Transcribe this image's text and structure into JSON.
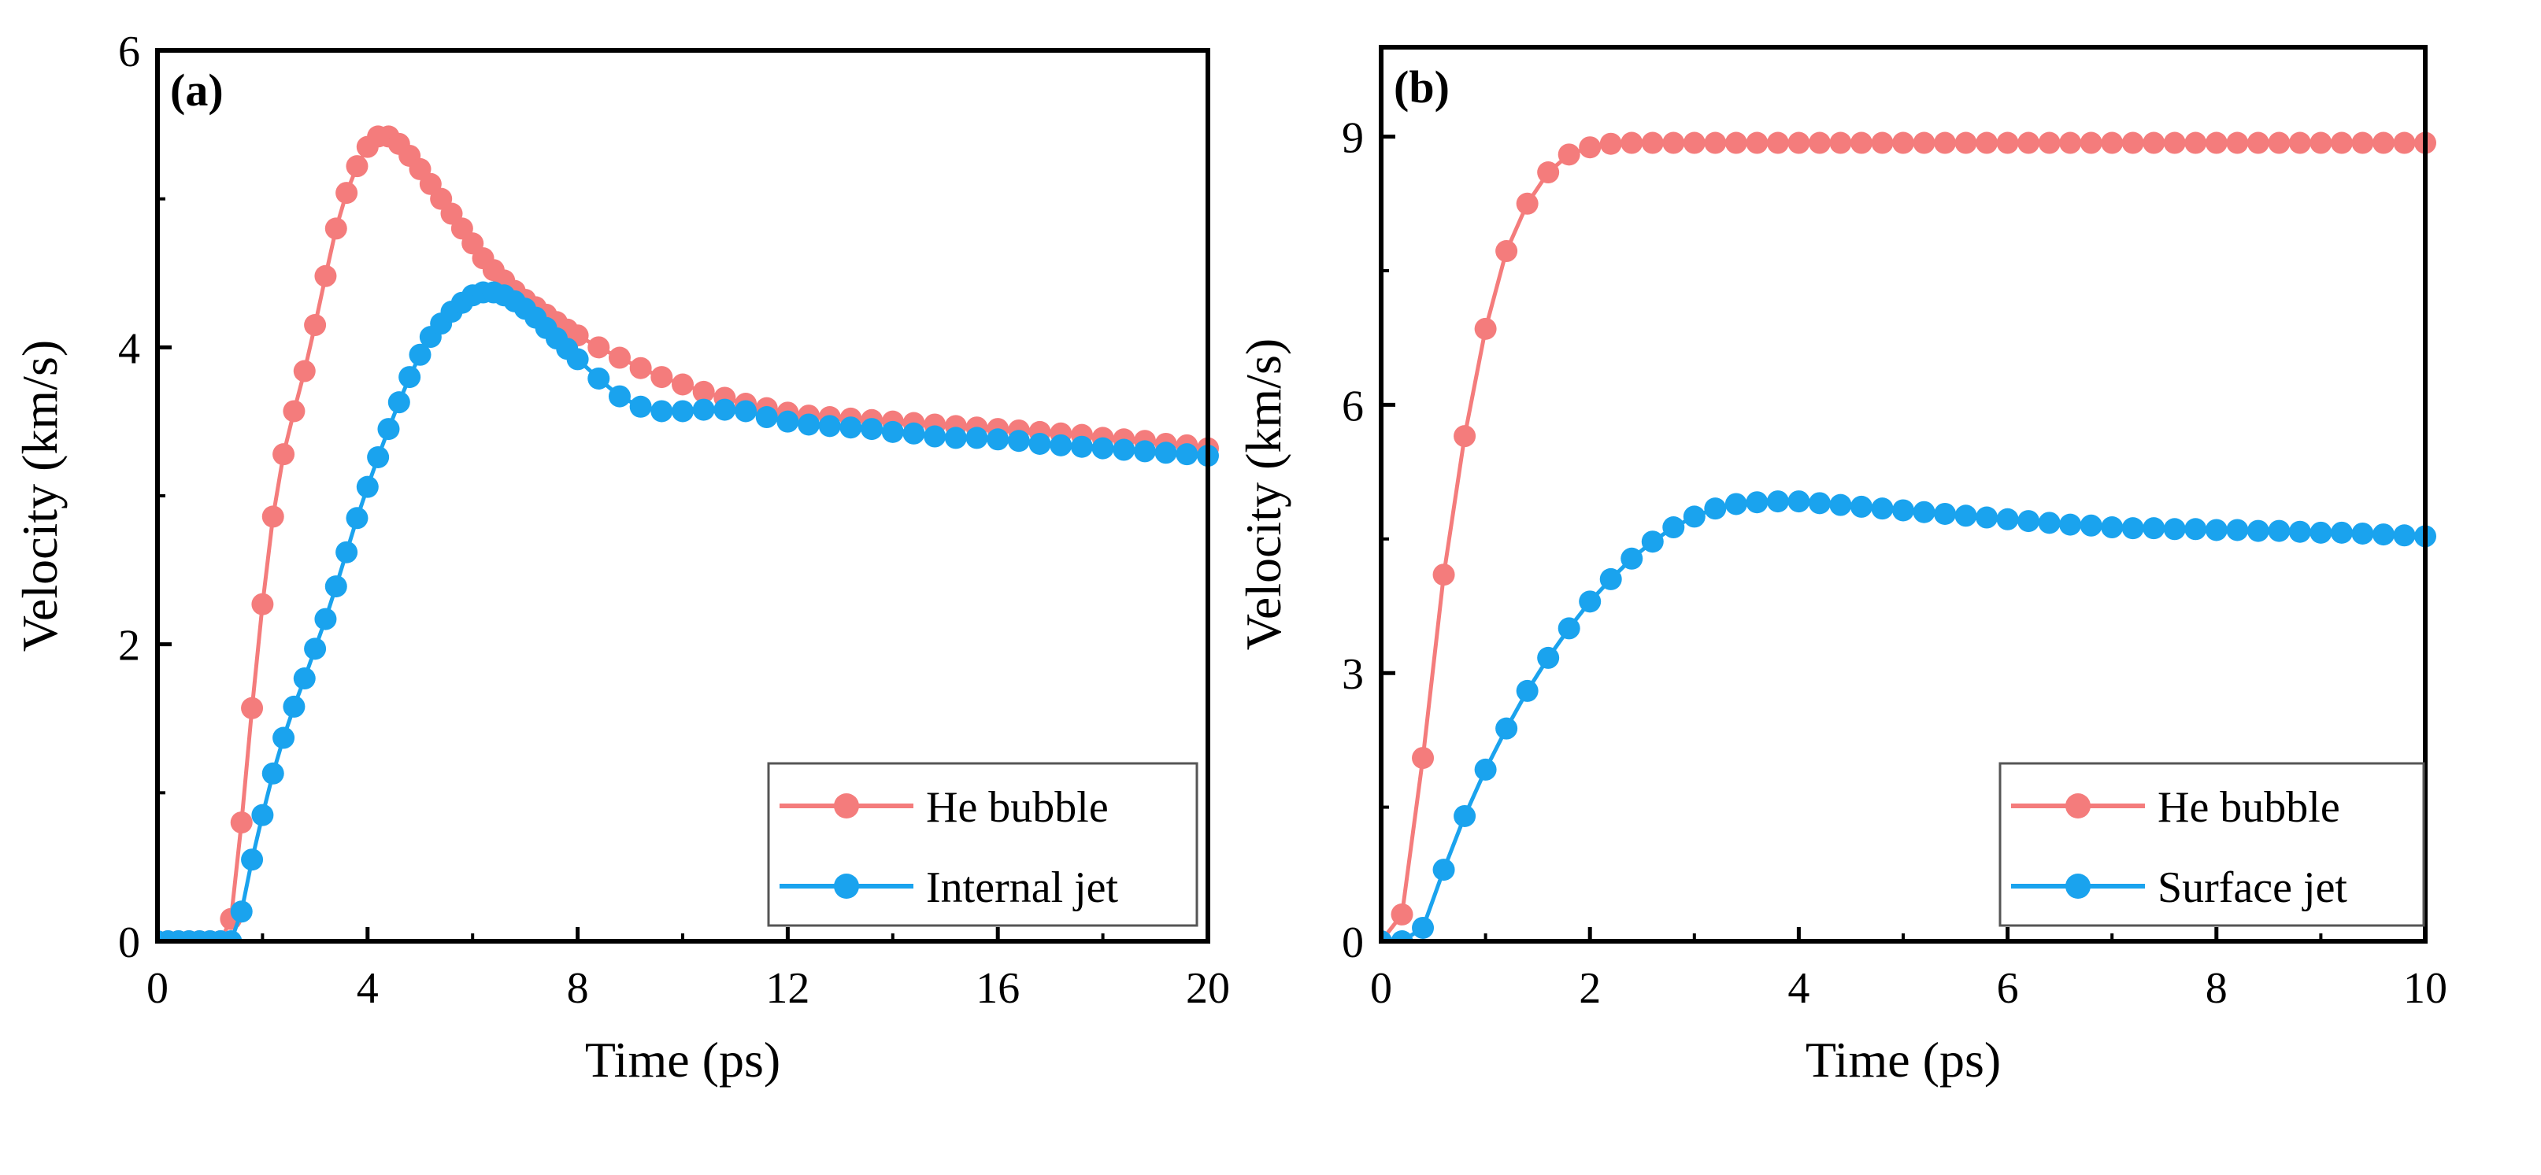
{
  "chart_data": [
    {
      "type": "line",
      "panel_label": "(a)",
      "xlabel": "Time (ps)",
      "ylabel": "Velocity (km/s)",
      "xlim": [
        0,
        20
      ],
      "ylim": [
        0,
        6
      ],
      "xticks": [
        0,
        4,
        8,
        12,
        16,
        20
      ],
      "yticks": [
        0,
        2,
        4,
        6
      ],
      "xminor": [
        2,
        6,
        10,
        14,
        18
      ],
      "yminor": [
        1,
        3,
        5
      ],
      "grid": false,
      "legend_position": "bottom-right",
      "series": [
        {
          "name": "He bubble",
          "color": "#F47C7C",
          "x": [
            0,
            0.2,
            0.4,
            0.6,
            0.8,
            1.0,
            1.2,
            1.4,
            1.6,
            1.8,
            2.0,
            2.2,
            2.4,
            2.6,
            2.8,
            3.0,
            3.2,
            3.4,
            3.6,
            3.8,
            4.0,
            4.2,
            4.4,
            4.6,
            4.8,
            5.0,
            5.2,
            5.4,
            5.6,
            5.8,
            6.0,
            6.2,
            6.4,
            6.6,
            6.8,
            7.0,
            7.2,
            7.4,
            7.6,
            7.8,
            8.0,
            8.4,
            8.8,
            9.2,
            9.6,
            10.0,
            10.4,
            10.8,
            11.2,
            11.6,
            12.0,
            12.4,
            12.8,
            13.2,
            13.6,
            14.0,
            14.4,
            14.8,
            15.2,
            15.6,
            16.0,
            16.4,
            16.8,
            17.2,
            17.6,
            18.0,
            18.4,
            18.8,
            19.2,
            19.6,
            20.0
          ],
          "y": [
            0,
            0,
            0,
            0,
            0,
            0,
            0,
            0.15,
            0.8,
            1.57,
            2.27,
            2.86,
            3.28,
            3.57,
            3.84,
            4.15,
            4.48,
            4.8,
            5.04,
            5.22,
            5.35,
            5.42,
            5.42,
            5.37,
            5.29,
            5.2,
            5.1,
            5.0,
            4.9,
            4.8,
            4.7,
            4.6,
            4.52,
            4.45,
            4.38,
            4.32,
            4.27,
            4.22,
            4.17,
            4.12,
            4.08,
            4.0,
            3.93,
            3.86,
            3.8,
            3.75,
            3.7,
            3.66,
            3.62,
            3.59,
            3.56,
            3.54,
            3.53,
            3.52,
            3.51,
            3.5,
            3.49,
            3.48,
            3.47,
            3.46,
            3.45,
            3.44,
            3.43,
            3.42,
            3.41,
            3.39,
            3.38,
            3.37,
            3.35,
            3.34,
            3.32
          ]
        },
        {
          "name": "Internal jet",
          "color": "#1AA3EE",
          "x": [
            0,
            0.2,
            0.4,
            0.6,
            0.8,
            1.0,
            1.2,
            1.4,
            1.6,
            1.8,
            2.0,
            2.2,
            2.4,
            2.6,
            2.8,
            3.0,
            3.2,
            3.4,
            3.6,
            3.8,
            4.0,
            4.2,
            4.4,
            4.6,
            4.8,
            5.0,
            5.2,
            5.4,
            5.6,
            5.8,
            6.0,
            6.2,
            6.4,
            6.6,
            6.8,
            7.0,
            7.2,
            7.4,
            7.6,
            7.8,
            8.0,
            8.4,
            8.8,
            9.2,
            9.6,
            10.0,
            10.4,
            10.8,
            11.2,
            11.6,
            12.0,
            12.4,
            12.8,
            13.2,
            13.6,
            14.0,
            14.4,
            14.8,
            15.2,
            15.6,
            16.0,
            16.4,
            16.8,
            17.2,
            17.6,
            18.0,
            18.4,
            18.8,
            19.2,
            19.6,
            20.0
          ],
          "y": [
            0,
            0,
            0,
            0,
            0,
            0,
            0,
            0,
            0.2,
            0.55,
            0.85,
            1.13,
            1.37,
            1.58,
            1.77,
            1.97,
            2.17,
            2.39,
            2.62,
            2.85,
            3.06,
            3.26,
            3.45,
            3.63,
            3.8,
            3.95,
            4.07,
            4.16,
            4.24,
            4.3,
            4.35,
            4.37,
            4.37,
            4.35,
            4.31,
            4.26,
            4.2,
            4.13,
            4.06,
            3.99,
            3.92,
            3.79,
            3.67,
            3.6,
            3.57,
            3.57,
            3.58,
            3.58,
            3.57,
            3.53,
            3.5,
            3.48,
            3.47,
            3.46,
            3.45,
            3.43,
            3.42,
            3.4,
            3.39,
            3.39,
            3.38,
            3.37,
            3.35,
            3.34,
            3.33,
            3.32,
            3.31,
            3.3,
            3.29,
            3.28,
            3.27
          ]
        }
      ]
    },
    {
      "type": "line",
      "panel_label": "(b)",
      "xlabel": "Time (ps)",
      "ylabel": "Velocity (km/s)",
      "xlim": [
        0,
        10
      ],
      "ylim": [
        0,
        10
      ],
      "xticks": [
        0,
        2,
        4,
        6,
        8,
        10
      ],
      "yticks": [
        0,
        3,
        6,
        9
      ],
      "xminor": [
        1,
        3,
        5,
        7,
        9
      ],
      "yminor": [
        1.5,
        4.5,
        7.5
      ],
      "grid": false,
      "legend_position": "bottom-right",
      "series": [
        {
          "name": "He bubble",
          "color": "#F47C7C",
          "x": [
            0,
            0.2,
            0.4,
            0.6,
            0.8,
            1.0,
            1.2,
            1.4,
            1.6,
            1.8,
            2.0,
            2.2,
            2.4,
            2.6,
            2.8,
            3.0,
            3.2,
            3.4,
            3.6,
            3.8,
            4.0,
            4.2,
            4.4,
            4.6,
            4.8,
            5.0,
            5.2,
            5.4,
            5.6,
            5.8,
            6.0,
            6.2,
            6.4,
            6.6,
            6.8,
            7.0,
            7.2,
            7.4,
            7.6,
            7.8,
            8.0,
            8.2,
            8.4,
            8.6,
            8.8,
            9.0,
            9.2,
            9.4,
            9.6,
            9.8,
            10.0
          ],
          "y": [
            0,
            0.3,
            2.05,
            4.1,
            5.65,
            6.85,
            7.72,
            8.25,
            8.6,
            8.8,
            8.88,
            8.92,
            8.93,
            8.93,
            8.93,
            8.93,
            8.93,
            8.93,
            8.93,
            8.93,
            8.93,
            8.93,
            8.93,
            8.93,
            8.93,
            8.93,
            8.93,
            8.93,
            8.93,
            8.93,
            8.93,
            8.93,
            8.93,
            8.93,
            8.93,
            8.93,
            8.93,
            8.93,
            8.93,
            8.93,
            8.93,
            8.93,
            8.93,
            8.93,
            8.93,
            8.93,
            8.93,
            8.93,
            8.93,
            8.93,
            8.93
          ]
        },
        {
          "name": "Surface jet",
          "color": "#1AA3EE",
          "x": [
            0,
            0.2,
            0.4,
            0.6,
            0.8,
            1.0,
            1.2,
            1.4,
            1.6,
            1.8,
            2.0,
            2.2,
            2.4,
            2.6,
            2.8,
            3.0,
            3.2,
            3.4,
            3.6,
            3.8,
            4.0,
            4.2,
            4.4,
            4.6,
            4.8,
            5.0,
            5.2,
            5.4,
            5.6,
            5.8,
            6.0,
            6.2,
            6.4,
            6.6,
            6.8,
            7.0,
            7.2,
            7.4,
            7.6,
            7.8,
            8.0,
            8.2,
            8.4,
            8.6,
            8.8,
            9.0,
            9.2,
            9.4,
            9.6,
            9.8,
            10.0
          ],
          "y": [
            0,
            0,
            0.15,
            0.8,
            1.4,
            1.92,
            2.38,
            2.8,
            3.17,
            3.5,
            3.8,
            4.05,
            4.28,
            4.47,
            4.63,
            4.75,
            4.84,
            4.89,
            4.91,
            4.92,
            4.92,
            4.9,
            4.88,
            4.86,
            4.84,
            4.82,
            4.8,
            4.78,
            4.76,
            4.74,
            4.72,
            4.7,
            4.68,
            4.66,
            4.65,
            4.63,
            4.62,
            4.62,
            4.61,
            4.61,
            4.6,
            4.6,
            4.59,
            4.59,
            4.58,
            4.57,
            4.57,
            4.56,
            4.55,
            4.54,
            4.53
          ]
        }
      ]
    }
  ]
}
